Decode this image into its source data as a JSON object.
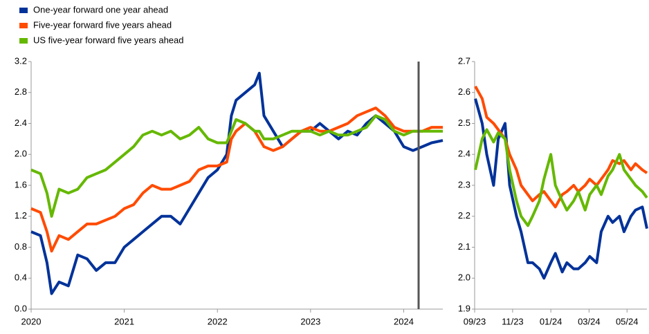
{
  "chart_data": [
    {
      "type": "line",
      "x": [
        2020.0,
        2020.1,
        2020.17,
        2020.22,
        2020.3,
        2020.4,
        2020.5,
        2020.6,
        2020.7,
        2020.8,
        2020.9,
        2021.0,
        2021.1,
        2021.2,
        2021.3,
        2021.4,
        2021.5,
        2021.6,
        2021.7,
        2021.8,
        2021.9,
        2022.0,
        2022.1,
        2022.15,
        2022.2,
        2022.3,
        2022.4,
        2022.45,
        2022.5,
        2022.6,
        2022.7,
        2022.8,
        2022.9,
        2023.0,
        2023.1,
        2023.2,
        2023.3,
        2023.4,
        2023.5,
        2023.6,
        2023.7,
        2023.8,
        2023.9,
        2024.0,
        2024.1,
        2024.2,
        2024.3,
        2024.42
      ],
      "series": [
        {
          "name": "One-year forward one year ahead",
          "color": "#003299",
          "values": [
            1.0,
            0.95,
            0.6,
            0.2,
            0.35,
            0.3,
            0.7,
            0.65,
            0.5,
            0.6,
            0.6,
            0.8,
            0.9,
            1.0,
            1.1,
            1.2,
            1.2,
            1.1,
            1.3,
            1.5,
            1.7,
            1.8,
            2.0,
            2.5,
            2.7,
            2.8,
            2.9,
            3.05,
            2.5,
            2.3,
            2.1,
            2.2,
            2.3,
            2.3,
            2.4,
            2.3,
            2.2,
            2.3,
            2.25,
            2.4,
            2.5,
            2.4,
            2.3,
            2.1,
            2.05,
            2.1,
            2.15,
            2.18
          ]
        },
        {
          "name": "Five-year forward five years ahead",
          "color": "#ff4b00",
          "values": [
            1.3,
            1.25,
            1.0,
            0.75,
            0.95,
            0.9,
            1.0,
            1.1,
            1.1,
            1.15,
            1.2,
            1.3,
            1.35,
            1.5,
            1.6,
            1.55,
            1.55,
            1.6,
            1.65,
            1.8,
            1.85,
            1.85,
            1.9,
            2.2,
            2.3,
            2.4,
            2.3,
            2.2,
            2.1,
            2.05,
            2.1,
            2.2,
            2.3,
            2.35,
            2.3,
            2.3,
            2.35,
            2.4,
            2.5,
            2.55,
            2.6,
            2.5,
            2.35,
            2.3,
            2.3,
            2.3,
            2.35,
            2.35
          ]
        },
        {
          "name": "US five-year forward five years ahead",
          "color": "#65b800",
          "values": [
            1.8,
            1.75,
            1.5,
            1.2,
            1.55,
            1.5,
            1.55,
            1.7,
            1.75,
            1.8,
            1.9,
            2.0,
            2.1,
            2.25,
            2.3,
            2.25,
            2.3,
            2.2,
            2.25,
            2.35,
            2.2,
            2.15,
            2.15,
            2.3,
            2.45,
            2.4,
            2.3,
            2.3,
            2.2,
            2.2,
            2.25,
            2.3,
            2.3,
            2.3,
            2.25,
            2.3,
            2.25,
            2.25,
            2.3,
            2.35,
            2.5,
            2.45,
            2.3,
            2.25,
            2.3,
            2.3,
            2.3,
            2.3
          ]
        }
      ],
      "xlim": [
        2020.0,
        2024.42
      ],
      "xticks": [
        2020,
        2021,
        2022,
        2023,
        2024
      ],
      "ylim": [
        0.0,
        3.2
      ],
      "yticks": [
        {
          "value": 0,
          "label": "0.0"
        },
        0.4,
        0.8,
        1.2,
        1.6,
        {
          "value": 2,
          "label": "2.0"
        },
        2.4,
        2.8,
        3.2
      ],
      "vline": 2024.16,
      "vline_color": "#555555"
    },
    {
      "type": "line",
      "x": [
        2023.67,
        2023.7,
        2023.72,
        2023.75,
        2023.77,
        2023.8,
        2023.82,
        2023.85,
        2023.87,
        2023.9,
        2023.92,
        2023.95,
        2023.97,
        2024.0,
        2024.02,
        2024.05,
        2024.07,
        2024.1,
        2024.12,
        2024.15,
        2024.17,
        2024.2,
        2024.22,
        2024.25,
        2024.27,
        2024.3,
        2024.32,
        2024.35,
        2024.37,
        2024.4,
        2024.42
      ],
      "series": [
        {
          "color": "#003299",
          "values": [
            2.58,
            2.5,
            2.4,
            2.3,
            2.45,
            2.5,
            2.3,
            2.2,
            2.15,
            2.05,
            2.05,
            2.03,
            2.0,
            2.05,
            2.08,
            2.02,
            2.05,
            2.03,
            2.03,
            2.05,
            2.07,
            2.05,
            2.15,
            2.2,
            2.18,
            2.2,
            2.15,
            2.2,
            2.22,
            2.23,
            2.16
          ]
        },
        {
          "color": "#ff4b00",
          "values": [
            2.62,
            2.58,
            2.52,
            2.5,
            2.48,
            2.45,
            2.4,
            2.35,
            2.3,
            2.27,
            2.25,
            2.27,
            2.28,
            2.25,
            2.23,
            2.27,
            2.28,
            2.3,
            2.28,
            2.3,
            2.32,
            2.3,
            2.32,
            2.35,
            2.38,
            2.37,
            2.38,
            2.35,
            2.37,
            2.35,
            2.34
          ]
        },
        {
          "color": "#65b800",
          "values": [
            2.35,
            2.45,
            2.48,
            2.44,
            2.47,
            2.45,
            2.35,
            2.25,
            2.2,
            2.17,
            2.2,
            2.25,
            2.32,
            2.4,
            2.3,
            2.25,
            2.22,
            2.25,
            2.28,
            2.22,
            2.27,
            2.3,
            2.27,
            2.33,
            2.35,
            2.4,
            2.35,
            2.32,
            2.3,
            2.28,
            2.26
          ]
        }
      ],
      "xlim": [
        2023.667,
        2024.42
      ],
      "xticks": [
        {
          "value": 2023.667,
          "label": "09/23"
        },
        {
          "value": 2023.833,
          "label": "11/23"
        },
        {
          "value": 2024.0,
          "label": "01/24"
        },
        {
          "value": 2024.167,
          "label": "03/24"
        },
        {
          "value": 2024.333,
          "label": "05/24"
        }
      ],
      "ylim": [
        1.9,
        2.7
      ],
      "yticks": [
        1.9,
        {
          "value": 2,
          "label": "2.0"
        },
        2.1,
        2.2,
        2.3,
        2.4,
        2.5,
        2.6,
        2.7
      ]
    }
  ]
}
